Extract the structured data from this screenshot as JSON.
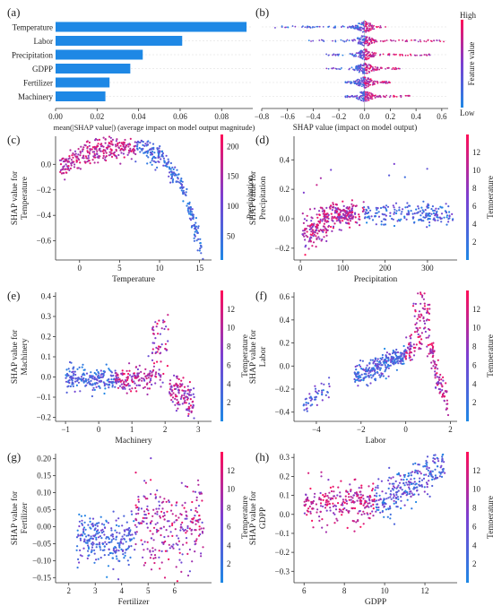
{
  "panel_letters": [
    "(a)",
    "(b)",
    "(c)",
    "(d)",
    "(e)",
    "(f)",
    "(g)",
    "(h)"
  ],
  "colors": {
    "low": "#1e88e5",
    "mid": "#7b3fd1",
    "high": "#ff0d57"
  },
  "chart_data": [
    {
      "panel": "(a)",
      "type": "bar",
      "orientation": "horizontal",
      "categories": [
        "Temperature",
        "Labor",
        "Precipitation",
        "GDPP",
        "Fertilizer",
        "Machinery"
      ],
      "values": [
        0.092,
        0.061,
        0.042,
        0.036,
        0.026,
        0.024
      ],
      "xlabel": "mean(|SHAP value|) (average impact on model output magnitude)",
      "xlim": [
        0,
        0.095
      ],
      "xticks": [
        "0.00",
        "0.02",
        "0.04",
        "0.06",
        "0.08"
      ],
      "xtick_values": [
        0,
        0.02,
        0.04,
        0.06,
        0.08
      ]
    },
    {
      "panel": "(b)",
      "type": "beeswarm",
      "features": [
        "Temperature",
        "Labor",
        "Precipitation",
        "GDPP",
        "Fertilizer",
        "Machinery"
      ],
      "ranges": [
        [
          -0.72,
          0.2
        ],
        [
          -0.45,
          0.62
        ],
        [
          -0.3,
          0.52
        ],
        [
          -0.3,
          0.28
        ],
        [
          -0.15,
          0.2
        ],
        [
          -0.15,
          0.35
        ]
      ],
      "xlabel": "SHAP value (impact on model output)",
      "xlim": [
        -0.8,
        0.65
      ],
      "xticks": [
        "−0.8",
        "−0.6",
        "−0.4",
        "−0.2",
        "0.0",
        "0.2",
        "0.4",
        "0.6"
      ],
      "xtick_values": [
        -0.8,
        -0.6,
        -0.4,
        -0.2,
        0,
        0.2,
        0.4,
        0.6
      ],
      "colorbar": {
        "label": "Feature value",
        "high": "High",
        "low": "Low"
      }
    },
    {
      "panel": "(c)",
      "type": "scatter",
      "xlabel": "Temperature",
      "ylabel": "SHAP value for\nTemperature",
      "xlim": [
        -3,
        16.5
      ],
      "ylim": [
        -0.75,
        0.22
      ],
      "xticks": [
        "0",
        "5",
        "10",
        "15"
      ],
      "xtick_values": [
        0,
        5,
        10,
        15
      ],
      "yticks": [
        "0.0",
        "−0.2",
        "−0.4",
        "−0.6"
      ],
      "ytick_values": [
        0,
        -0.2,
        -0.4,
        -0.6
      ],
      "colorbar": {
        "label": "Precipitation",
        "ticks": [
          "50",
          "100",
          "150",
          "200"
        ],
        "tick_values": [
          50,
          100,
          150,
          200
        ],
        "range": [
          10,
          220
        ]
      }
    },
    {
      "panel": "(d)",
      "type": "scatter",
      "xlabel": "Precipitation",
      "ylabel": "SHAP value for\nPrecipitation",
      "xlim": [
        -15,
        370
      ],
      "ylim": [
        -0.28,
        0.56
      ],
      "xticks": [
        "0",
        "100",
        "200",
        "300"
      ],
      "xtick_values": [
        0,
        100,
        200,
        300
      ],
      "yticks": [
        "0.4",
        "0.2",
        "0.0",
        "−0.2"
      ],
      "ytick_values": [
        0.4,
        0.2,
        0,
        -0.2
      ],
      "colorbar": {
        "label": "Temperature",
        "ticks": [
          "2",
          "4",
          "6",
          "8",
          "10",
          "12"
        ],
        "tick_values": [
          2,
          4,
          6,
          8,
          10,
          12
        ],
        "range": [
          0,
          14
        ]
      }
    },
    {
      "panel": "(e)",
      "type": "scatter",
      "xlabel": "Machinery",
      "ylabel": "SHAP value for\nMachinery",
      "xlim": [
        -1.3,
        3.4
      ],
      "ylim": [
        -0.22,
        0.42
      ],
      "xticks": [
        "−1",
        "0",
        "1",
        "2",
        "3"
      ],
      "xtick_values": [
        -1,
        0,
        1,
        2,
        3
      ],
      "yticks": [
        "0.4",
        "0.3",
        "0.2",
        "0.1",
        "0.0",
        "−0.1",
        "−0.2"
      ],
      "ytick_values": [
        0.4,
        0.3,
        0.2,
        0.1,
        0,
        -0.1,
        -0.2
      ],
      "colorbar": {
        "label": "Temperature",
        "ticks": [
          "2",
          "4",
          "6",
          "8",
          "10",
          "12"
        ],
        "tick_values": [
          2,
          4,
          6,
          8,
          10,
          12
        ],
        "range": [
          0,
          14
        ]
      }
    },
    {
      "panel": "(f)",
      "type": "scatter",
      "xlabel": "Labor",
      "ylabel": "SHAP value for\nLabor",
      "xlim": [
        -5,
        2.3
      ],
      "ylim": [
        -0.48,
        0.64
      ],
      "xticks": [
        "−4",
        "−2",
        "0",
        "2"
      ],
      "xtick_values": [
        -4,
        -2,
        0,
        2
      ],
      "yticks": [
        "0.6",
        "0.4",
        "0.2",
        "0.0",
        "−0.2",
        "−0.4"
      ],
      "ytick_values": [
        0.6,
        0.4,
        0.2,
        0,
        -0.2,
        -0.4
      ],
      "colorbar": {
        "label": "Temperature",
        "ticks": [
          "2",
          "4",
          "6",
          "8",
          "10",
          "12"
        ],
        "tick_values": [
          2,
          4,
          6,
          8,
          10,
          12
        ],
        "range": [
          0,
          14
        ]
      }
    },
    {
      "panel": "(g)",
      "type": "scatter",
      "xlabel": "Fertilizer",
      "ylabel": "SHAP value for\nFertilizer",
      "xlim": [
        1.5,
        7.4
      ],
      "ylim": [
        -0.165,
        0.215
      ],
      "xticks": [
        "2",
        "3",
        "4",
        "5",
        "6"
      ],
      "xtick_values": [
        2,
        3,
        4,
        5,
        6
      ],
      "yticks": [
        "0.20",
        "0.15",
        "0.10",
        "0.05",
        "0.00",
        "−0.05",
        "−0.10",
        "−0.15"
      ],
      "ytick_values": [
        0.2,
        0.15,
        0.1,
        0.05,
        0,
        -0.05,
        -0.1,
        -0.15
      ],
      "colorbar": {
        "label": "Temperature",
        "ticks": [
          "2",
          "4",
          "6",
          "8",
          "10",
          "12"
        ],
        "tick_values": [
          2,
          4,
          6,
          8,
          10,
          12
        ],
        "range": [
          0,
          14
        ]
      }
    },
    {
      "panel": "(h)",
      "type": "scatter",
      "xlabel": "GDPP",
      "ylabel": "SHAP value for\nGDPP",
      "xlim": [
        5.5,
        13.6
      ],
      "ylim": [
        -0.36,
        0.32
      ],
      "xticks": [
        "6",
        "8",
        "10",
        "12"
      ],
      "xtick_values": [
        6,
        8,
        10,
        12
      ],
      "yticks": [
        "0.3",
        "0.2",
        "0.1",
        "0.0",
        "−0.1",
        "−0.2",
        "−0.3"
      ],
      "ytick_values": [
        0.3,
        0.2,
        0.1,
        0,
        -0.1,
        -0.2,
        -0.3
      ],
      "colorbar": {
        "label": "Temperature",
        "ticks": [
          "2",
          "4",
          "6",
          "8",
          "10",
          "12"
        ],
        "tick_values": [
          2,
          4,
          6,
          8,
          10,
          12
        ],
        "range": [
          0,
          14
        ]
      }
    }
  ]
}
